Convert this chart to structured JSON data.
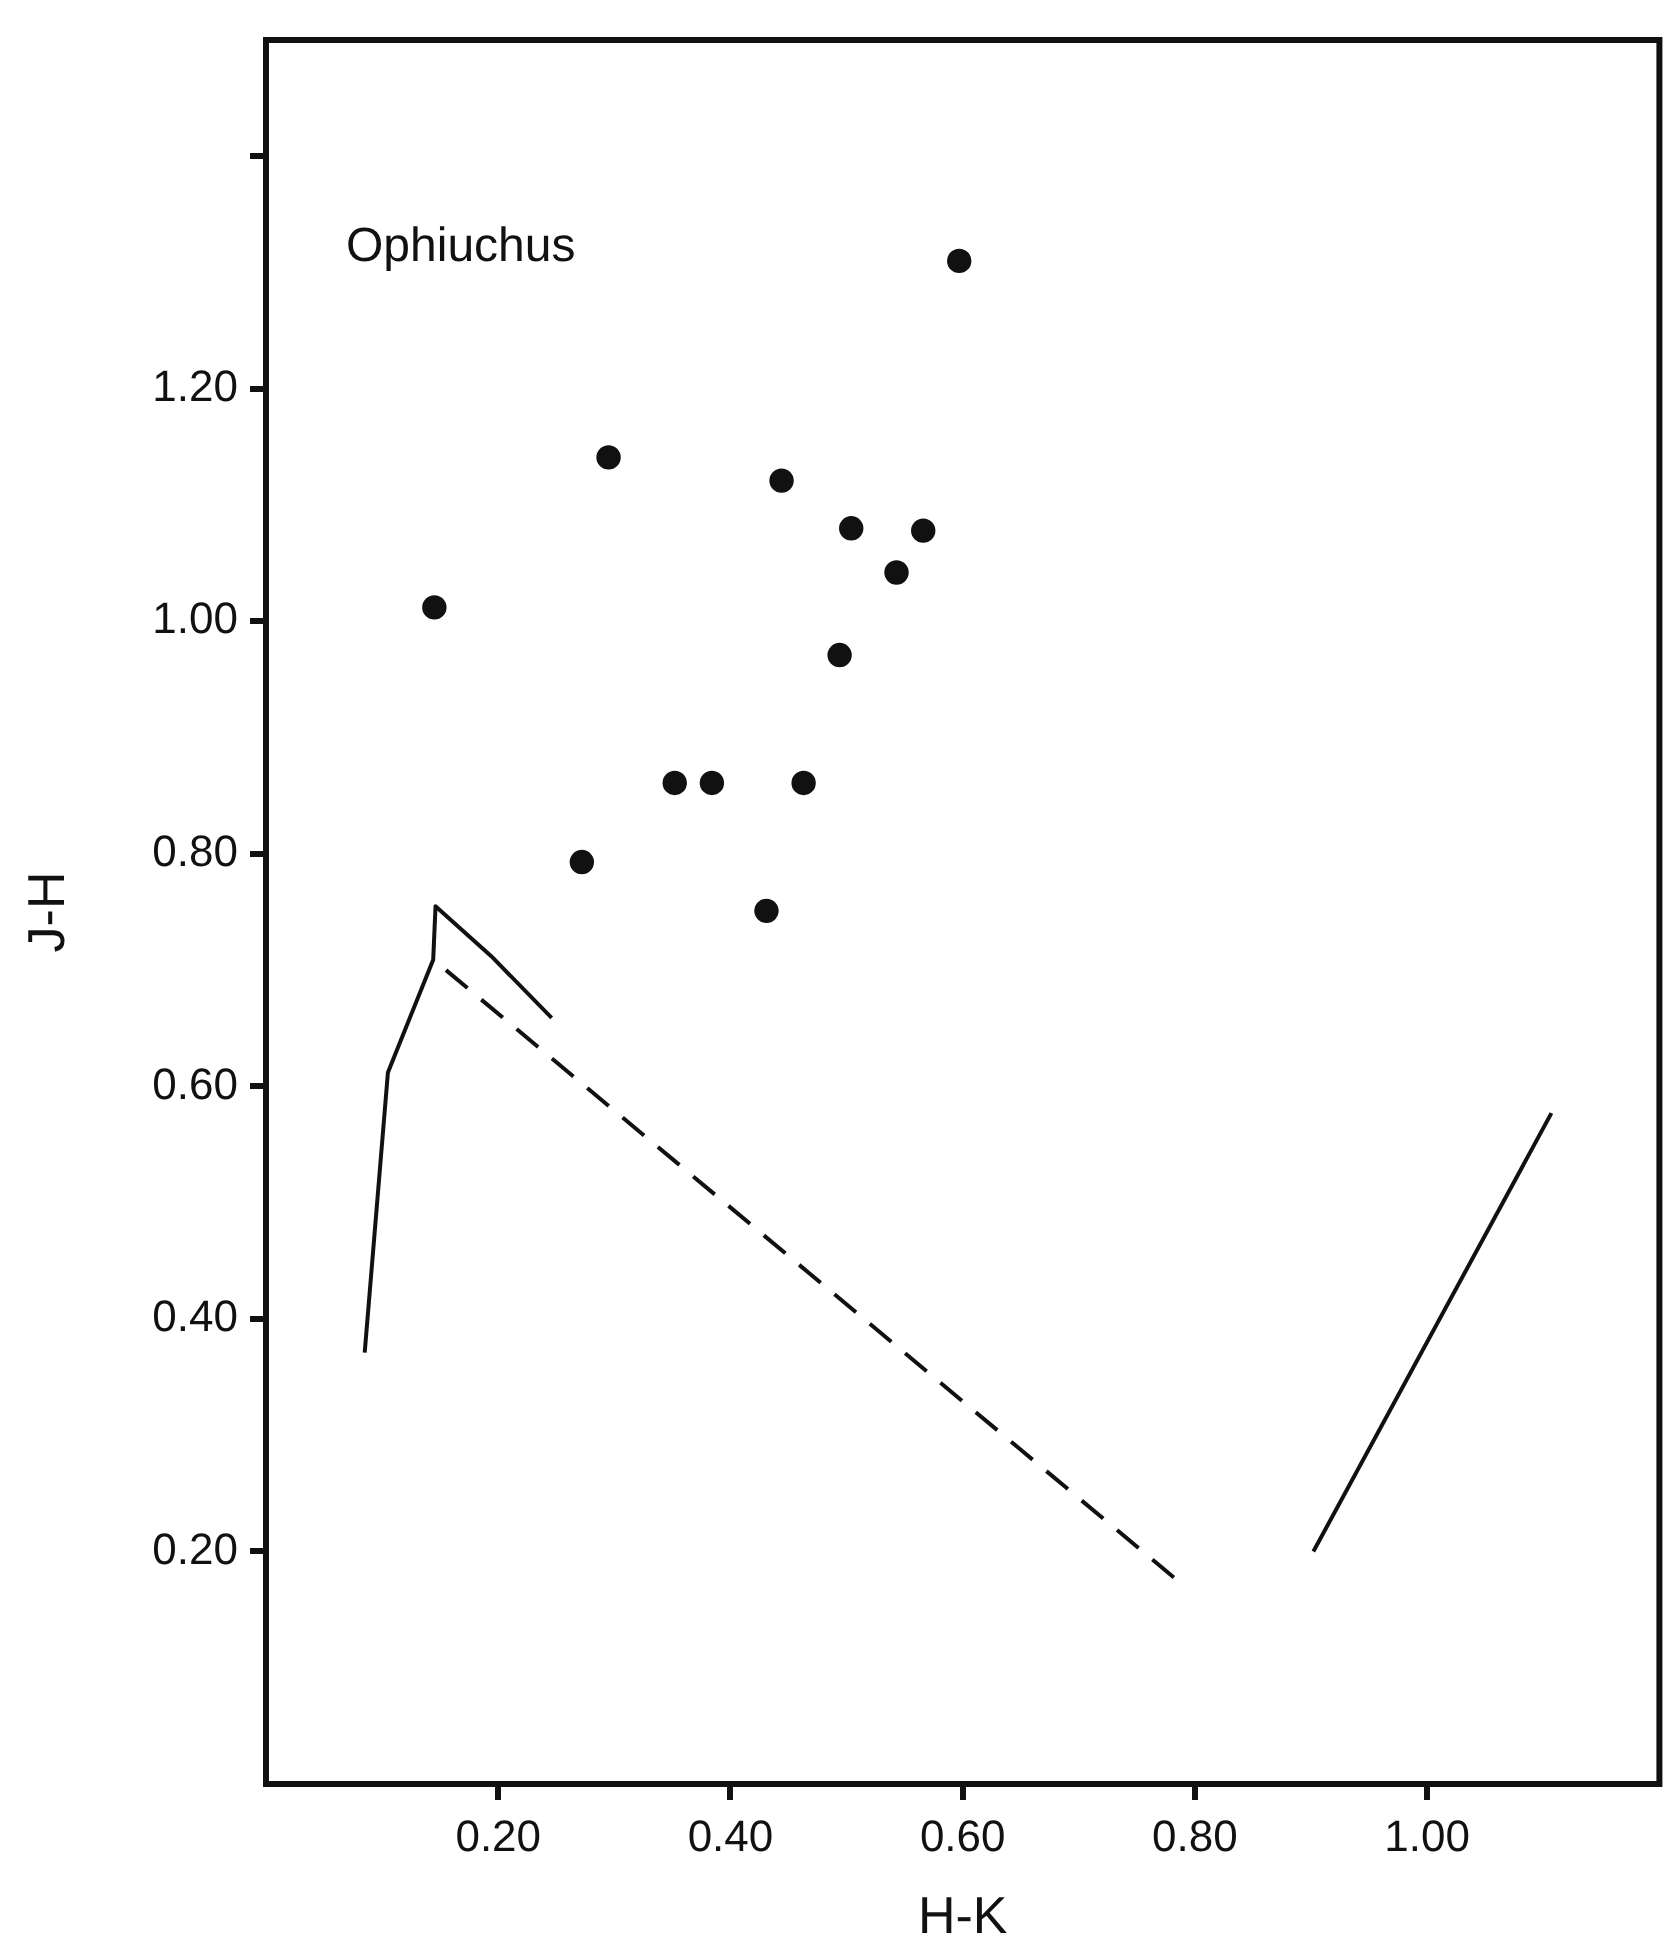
{
  "chart_data": {
    "type": "scatter",
    "xlabel": "H-K",
    "ylabel": "J-H",
    "annotations": [
      "Ophiuchus"
    ],
    "xlim": [
      0,
      1.2
    ],
    "xticks": [
      {
        "value": 0.2,
        "label": "0.20"
      },
      {
        "value": 0.4,
        "label": "0.40"
      },
      {
        "value": 0.6,
        "label": "0.60"
      },
      {
        "value": 0.8,
        "label": "0.80"
      },
      {
        "value": 1.0,
        "label": "1.00"
      }
    ],
    "ylim": [
      0,
      1.5
    ],
    "yticks": [
      {
        "value": 0.2,
        "label": "0.20"
      },
      {
        "value": 0.4,
        "label": "0.40"
      },
      {
        "value": 0.6,
        "label": "0.60"
      },
      {
        "value": 0.8,
        "label": "0.80"
      },
      {
        "value": 1.0,
        "label": "1.00"
      },
      {
        "value": 1.2,
        "label": "1.20"
      },
      {
        "value": 1.4,
        "label": null
      }
    ],
    "grid": false,
    "legend": false,
    "series": [
      {
        "marker": "circle",
        "color": "#111111",
        "x": [
          0.597,
          0.295,
          0.444,
          0.504,
          0.566,
          0.543,
          0.145,
          0.494,
          0.352,
          0.384,
          0.463,
          0.272,
          0.431
        ],
        "values": [
          1.31,
          1.141,
          1.121,
          1.08,
          1.078,
          1.042,
          1.012,
          0.971,
          0.861,
          0.861,
          0.861,
          0.793,
          0.751
        ]
      },
      {
        "type": "line",
        "marker": "none",
        "line_style": "solid",
        "color": "#111111",
        "x": [
          0.085,
          0.105,
          0.144,
          0.146,
          0.194,
          0.246
        ],
        "values": [
          0.371,
          0.612,
          0.709,
          0.755,
          0.712,
          0.659
        ]
      },
      {
        "type": "line",
        "marker": "none",
        "line_style": "dashed",
        "color": "#111111",
        "x": [
          0.155,
          0.785
        ],
        "values": [
          0.7,
          0.175
        ]
      },
      {
        "type": "line",
        "marker": "none",
        "line_style": "solid",
        "color": "#111111",
        "x": [
          0.902,
          1.107
        ],
        "values": [
          0.2,
          0.577
        ]
      }
    ]
  }
}
